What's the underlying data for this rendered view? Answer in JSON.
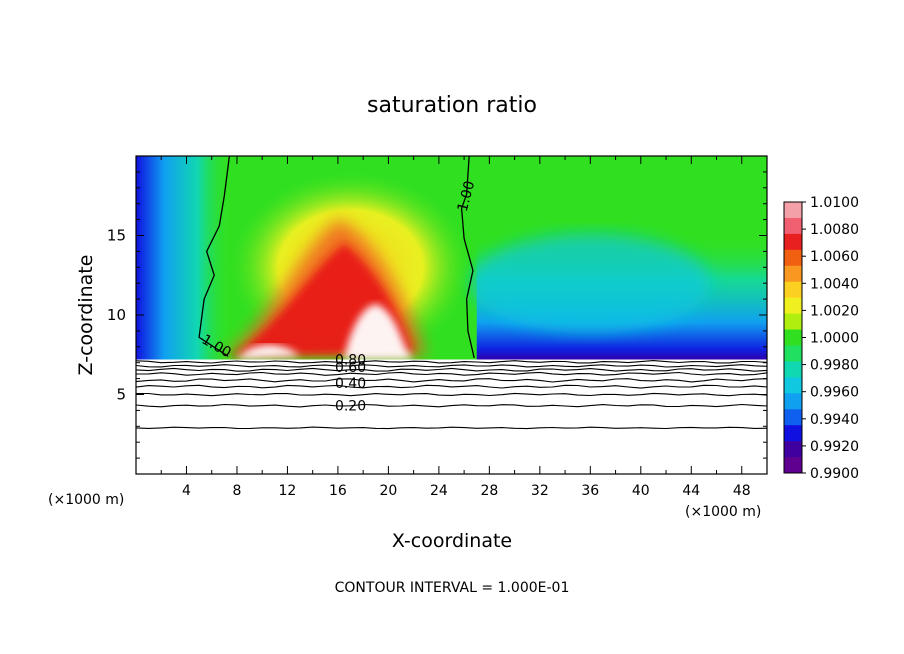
{
  "chart_data": {
    "type": "heatmap",
    "title": "saturation ratio",
    "xlabel": "X-coordinate",
    "ylabel": "Z-coordinate",
    "x_unit_left": "(×1000 m)",
    "x_unit_right": "(×1000 m)",
    "footer": "CONTOUR INTERVAL = 1.000E-01",
    "xlim": [
      0,
      50
    ],
    "ylim": [
      0,
      20
    ],
    "x_ticks": [
      "4",
      "8",
      "12",
      "16",
      "20",
      "24",
      "28",
      "32",
      "36",
      "40",
      "44",
      "48"
    ],
    "y_ticks": [
      "5",
      "10",
      "15"
    ],
    "colorbar": {
      "labels": [
        "1.0100",
        "1.0080",
        "1.0060",
        "1.0040",
        "1.0020",
        "1.0000",
        "0.9980",
        "0.9960",
        "0.9940",
        "0.9920",
        "0.9900"
      ],
      "colors": [
        "#f4a0a8",
        "#f06070",
        "#e82020",
        "#f06010",
        "#f89820",
        "#fcd020",
        "#f0f020",
        "#b0ee10",
        "#30e020",
        "#20e060",
        "#10d8b0",
        "#10c8e0",
        "#10a0f0",
        "#1060f0",
        "#1010e0",
        "#4000a0",
        "#600090"
      ]
    },
    "contour_labels": [
      {
        "text": "1.00",
        "x": 6.2,
        "y": 7.8
      },
      {
        "text": "1.00",
        "x": 26.5,
        "y": 17.4
      },
      {
        "text": "0.80",
        "x": 17.0,
        "y": 6.9
      },
      {
        "text": "0.60",
        "x": 17.0,
        "y": 6.4
      },
      {
        "text": "0.40",
        "x": 17.0,
        "y": 5.4
      },
      {
        "text": "0.20",
        "x": 17.0,
        "y": 4.0
      }
    ]
  }
}
